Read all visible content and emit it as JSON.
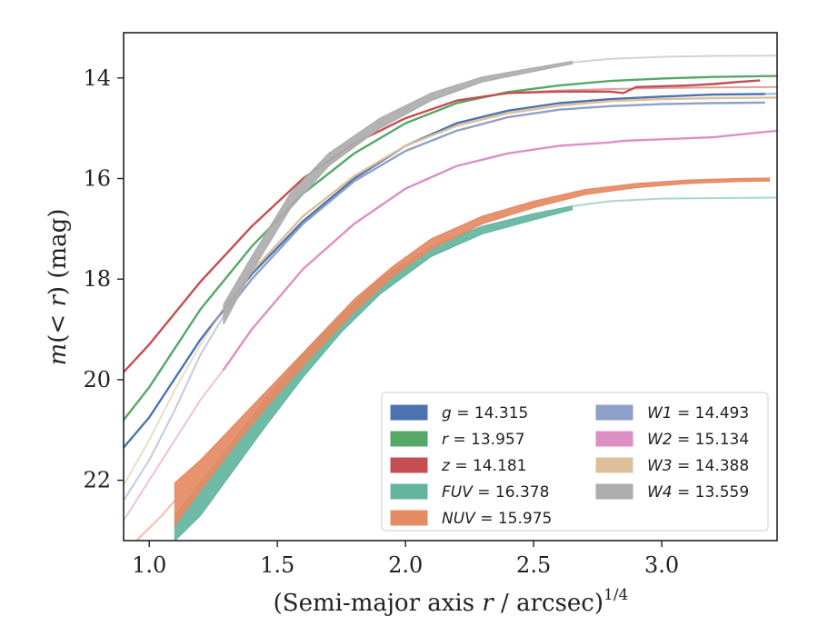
{
  "chart_data": {
    "type": "line",
    "xlabel": "(Semi-major axis r / arcsec)",
    "xlabel_parts": {
      "pre": "(Semi-major axis ",
      "var": "r",
      "post": " / arcsec)",
      "sup": "1/4"
    },
    "ylabel": "m(< r) (mag)",
    "ylabel_parts": {
      "m": "m",
      "mid": "(< ",
      "r": "r",
      "post": ") (mag)"
    },
    "xlim": [
      0.9,
      3.45
    ],
    "ylim": [
      23.2,
      13.1
    ],
    "y_inverted": true,
    "xticks": [
      1.0,
      1.5,
      2.0,
      2.5,
      3.0
    ],
    "xtick_labels": [
      "1.0",
      "1.5",
      "2.0",
      "2.5",
      "3.0"
    ],
    "yticks": [
      14,
      16,
      18,
      20,
      22
    ],
    "ytick_labels": [
      "14",
      "16",
      "18",
      "20",
      "22"
    ],
    "grid": false,
    "legend_position": "lower-right",
    "legend_columns": 2,
    "series": [
      {
        "name": "g",
        "value": "14.315",
        "color": "#4c72b0",
        "band_width": 0.06,
        "points": [
          [
            0.9,
            21.35
          ],
          [
            1.0,
            20.75
          ],
          [
            1.2,
            19.2
          ],
          [
            1.4,
            17.9
          ],
          [
            1.6,
            16.85
          ],
          [
            1.8,
            16.0
          ],
          [
            2.0,
            15.35
          ],
          [
            2.2,
            14.9
          ],
          [
            2.4,
            14.65
          ],
          [
            2.6,
            14.5
          ],
          [
            2.8,
            14.42
          ],
          [
            3.0,
            14.37
          ],
          [
            3.2,
            14.33
          ],
          [
            3.4,
            14.32
          ]
        ],
        "faded_points": [
          [
            3.4,
            14.32
          ],
          [
            3.45,
            14.315
          ]
        ]
      },
      {
        "name": "r",
        "value": "13.957",
        "color": "#55a868",
        "band_width": 0.06,
        "points": [
          [
            0.9,
            20.8
          ],
          [
            1.0,
            20.15
          ],
          [
            1.2,
            18.6
          ],
          [
            1.4,
            17.35
          ],
          [
            1.6,
            16.3
          ],
          [
            1.8,
            15.5
          ],
          [
            2.0,
            14.9
          ],
          [
            2.2,
            14.5
          ],
          [
            2.4,
            14.28
          ],
          [
            2.6,
            14.15
          ],
          [
            2.8,
            14.06
          ],
          [
            3.0,
            14.01
          ],
          [
            3.2,
            13.98
          ],
          [
            3.45,
            13.96
          ]
        ]
      },
      {
        "name": "z",
        "value": "14.181",
        "color": "#c44e52",
        "band_width": 0.06,
        "points": [
          [
            0.9,
            19.85
          ],
          [
            1.0,
            19.3
          ],
          [
            1.2,
            18.05
          ],
          [
            1.4,
            16.95
          ],
          [
            1.6,
            16.0
          ],
          [
            1.8,
            15.3
          ],
          [
            2.0,
            14.8
          ],
          [
            2.2,
            14.45
          ],
          [
            2.4,
            14.3
          ],
          [
            2.6,
            14.27
          ],
          [
            2.8,
            14.27
          ],
          [
            2.85,
            14.3
          ],
          [
            2.9,
            14.18
          ],
          [
            3.1,
            14.15
          ],
          [
            3.2,
            14.12
          ],
          [
            3.3,
            14.08
          ],
          [
            3.38,
            14.05
          ]
        ],
        "faded_points": [
          [
            2.4,
            14.3
          ],
          [
            2.6,
            14.25
          ],
          [
            2.8,
            14.22
          ],
          [
            3.0,
            14.2
          ],
          [
            3.2,
            14.19
          ],
          [
            3.45,
            14.18
          ]
        ]
      },
      {
        "name": "FUV",
        "value": "16.378",
        "color": "#64b5a0",
        "band_width": 0.0,
        "upper": [
          [
            1.1,
            22.7
          ],
          [
            1.2,
            22.05
          ],
          [
            1.3,
            21.4
          ],
          [
            1.45,
            20.4
          ],
          [
            1.6,
            19.5
          ],
          [
            1.75,
            18.7
          ],
          [
            1.9,
            18.0
          ],
          [
            2.1,
            17.35
          ],
          [
            2.3,
            16.95
          ],
          [
            2.5,
            16.7
          ],
          [
            2.65,
            16.55
          ]
        ],
        "lower": [
          [
            1.1,
            23.2
          ],
          [
            1.2,
            22.7
          ],
          [
            1.3,
            22.0
          ],
          [
            1.45,
            20.95
          ],
          [
            1.6,
            19.95
          ],
          [
            1.75,
            19.05
          ],
          [
            1.9,
            18.3
          ],
          [
            2.1,
            17.55
          ],
          [
            2.3,
            17.1
          ],
          [
            2.5,
            16.82
          ],
          [
            2.65,
            16.62
          ]
        ],
        "faded_points": [
          [
            2.65,
            16.55
          ],
          [
            2.8,
            16.45
          ],
          [
            3.0,
            16.4
          ],
          [
            3.2,
            16.39
          ],
          [
            3.45,
            16.38
          ]
        ]
      },
      {
        "name": "NUV",
        "value": "15.975",
        "color": "#e58a63",
        "band_width": 0.0,
        "upper": [
          [
            1.1,
            22.05
          ],
          [
            1.2,
            21.6
          ],
          [
            1.35,
            20.8
          ],
          [
            1.5,
            20.0
          ],
          [
            1.65,
            19.2
          ],
          [
            1.8,
            18.4
          ],
          [
            1.95,
            17.75
          ],
          [
            2.1,
            17.2
          ],
          [
            2.3,
            16.75
          ],
          [
            2.5,
            16.45
          ],
          [
            2.7,
            16.22
          ],
          [
            2.9,
            16.1
          ],
          [
            3.1,
            16.03
          ],
          [
            3.3,
            16.0
          ],
          [
            3.42,
            15.99
          ]
        ],
        "lower": [
          [
            1.1,
            22.9
          ],
          [
            1.2,
            22.2
          ],
          [
            1.35,
            21.2
          ],
          [
            1.5,
            20.3
          ],
          [
            1.65,
            19.45
          ],
          [
            1.8,
            18.65
          ],
          [
            1.95,
            17.95
          ],
          [
            2.1,
            17.4
          ],
          [
            2.3,
            16.9
          ],
          [
            2.5,
            16.58
          ],
          [
            2.7,
            16.32
          ],
          [
            2.9,
            16.18
          ],
          [
            3.1,
            16.1
          ],
          [
            3.3,
            16.06
          ],
          [
            3.42,
            16.05
          ]
        ],
        "faded_points": [
          [
            0.95,
            23.2
          ],
          [
            1.05,
            22.7
          ],
          [
            1.1,
            22.4
          ]
        ]
      },
      {
        "name": "W1",
        "value": "14.493",
        "color": "#8ea0c8",
        "band_width": 0.05,
        "points": [
          [
            1.3,
            18.65
          ],
          [
            1.4,
            18.0
          ],
          [
            1.6,
            16.9
          ],
          [
            1.8,
            16.05
          ],
          [
            2.0,
            15.45
          ],
          [
            2.2,
            15.05
          ],
          [
            2.4,
            14.78
          ],
          [
            2.6,
            14.63
          ],
          [
            2.8,
            14.56
          ],
          [
            3.0,
            14.52
          ],
          [
            3.2,
            14.5
          ],
          [
            3.4,
            14.49
          ]
        ],
        "faded_points": [
          [
            0.9,
            22.4
          ],
          [
            1.0,
            21.6
          ],
          [
            1.1,
            20.6
          ],
          [
            1.2,
            19.5
          ],
          [
            1.3,
            18.65
          ]
        ]
      },
      {
        "name": "W2",
        "value": "15.134",
        "color": "#dd8fc4",
        "band_width": 0.05,
        "points": [
          [
            1.29,
            19.8
          ],
          [
            1.4,
            19.0
          ],
          [
            1.6,
            17.8
          ],
          [
            1.8,
            16.9
          ],
          [
            2.0,
            16.2
          ],
          [
            2.2,
            15.75
          ],
          [
            2.4,
            15.5
          ],
          [
            2.6,
            15.35
          ],
          [
            2.8,
            15.28
          ],
          [
            2.85,
            15.25
          ],
          [
            3.0,
            15.22
          ],
          [
            3.2,
            15.18
          ],
          [
            3.35,
            15.1
          ],
          [
            3.45,
            15.05
          ]
        ],
        "faded_points": [
          [
            0.9,
            22.8
          ],
          [
            1.0,
            22.0
          ],
          [
            1.1,
            21.2
          ],
          [
            1.2,
            20.4
          ],
          [
            1.29,
            19.8
          ]
        ]
      },
      {
        "name": "W3",
        "value": "14.388",
        "color": "#dcc09a",
        "band_width": 0.05,
        "points": [
          [
            1.3,
            18.5
          ],
          [
            1.4,
            17.85
          ],
          [
            1.6,
            16.75
          ],
          [
            1.8,
            15.95
          ],
          [
            2.0,
            15.35
          ],
          [
            2.2,
            14.95
          ],
          [
            2.4,
            14.7
          ],
          [
            2.6,
            14.55
          ],
          [
            2.8,
            14.46
          ],
          [
            3.0,
            14.42
          ],
          [
            3.2,
            14.4
          ],
          [
            3.45,
            14.39
          ]
        ],
        "faded_points": [
          [
            0.9,
            22.1
          ],
          [
            1.0,
            21.2
          ],
          [
            1.1,
            20.2
          ],
          [
            1.2,
            19.3
          ],
          [
            1.3,
            18.5
          ]
        ]
      },
      {
        "name": "W4",
        "value": "13.559",
        "color": "#adadad",
        "band_width": 0.0,
        "upper": [
          [
            1.29,
            18.5
          ],
          [
            1.4,
            17.55
          ],
          [
            1.55,
            16.3
          ],
          [
            1.7,
            15.5
          ],
          [
            1.9,
            14.8
          ],
          [
            2.1,
            14.3
          ],
          [
            2.3,
            13.98
          ],
          [
            2.5,
            13.8
          ],
          [
            2.65,
            13.67
          ]
        ],
        "lower": [
          [
            1.29,
            18.9
          ],
          [
            1.4,
            17.85
          ],
          [
            1.55,
            16.6
          ],
          [
            1.7,
            15.75
          ],
          [
            1.9,
            15.0
          ],
          [
            2.1,
            14.45
          ],
          [
            2.3,
            14.08
          ],
          [
            2.5,
            13.87
          ],
          [
            2.65,
            13.72
          ]
        ],
        "faded_points": [
          [
            2.65,
            13.69
          ],
          [
            2.8,
            13.62
          ],
          [
            3.0,
            13.58
          ],
          [
            3.2,
            13.56
          ],
          [
            3.45,
            13.555
          ]
        ]
      }
    ]
  }
}
